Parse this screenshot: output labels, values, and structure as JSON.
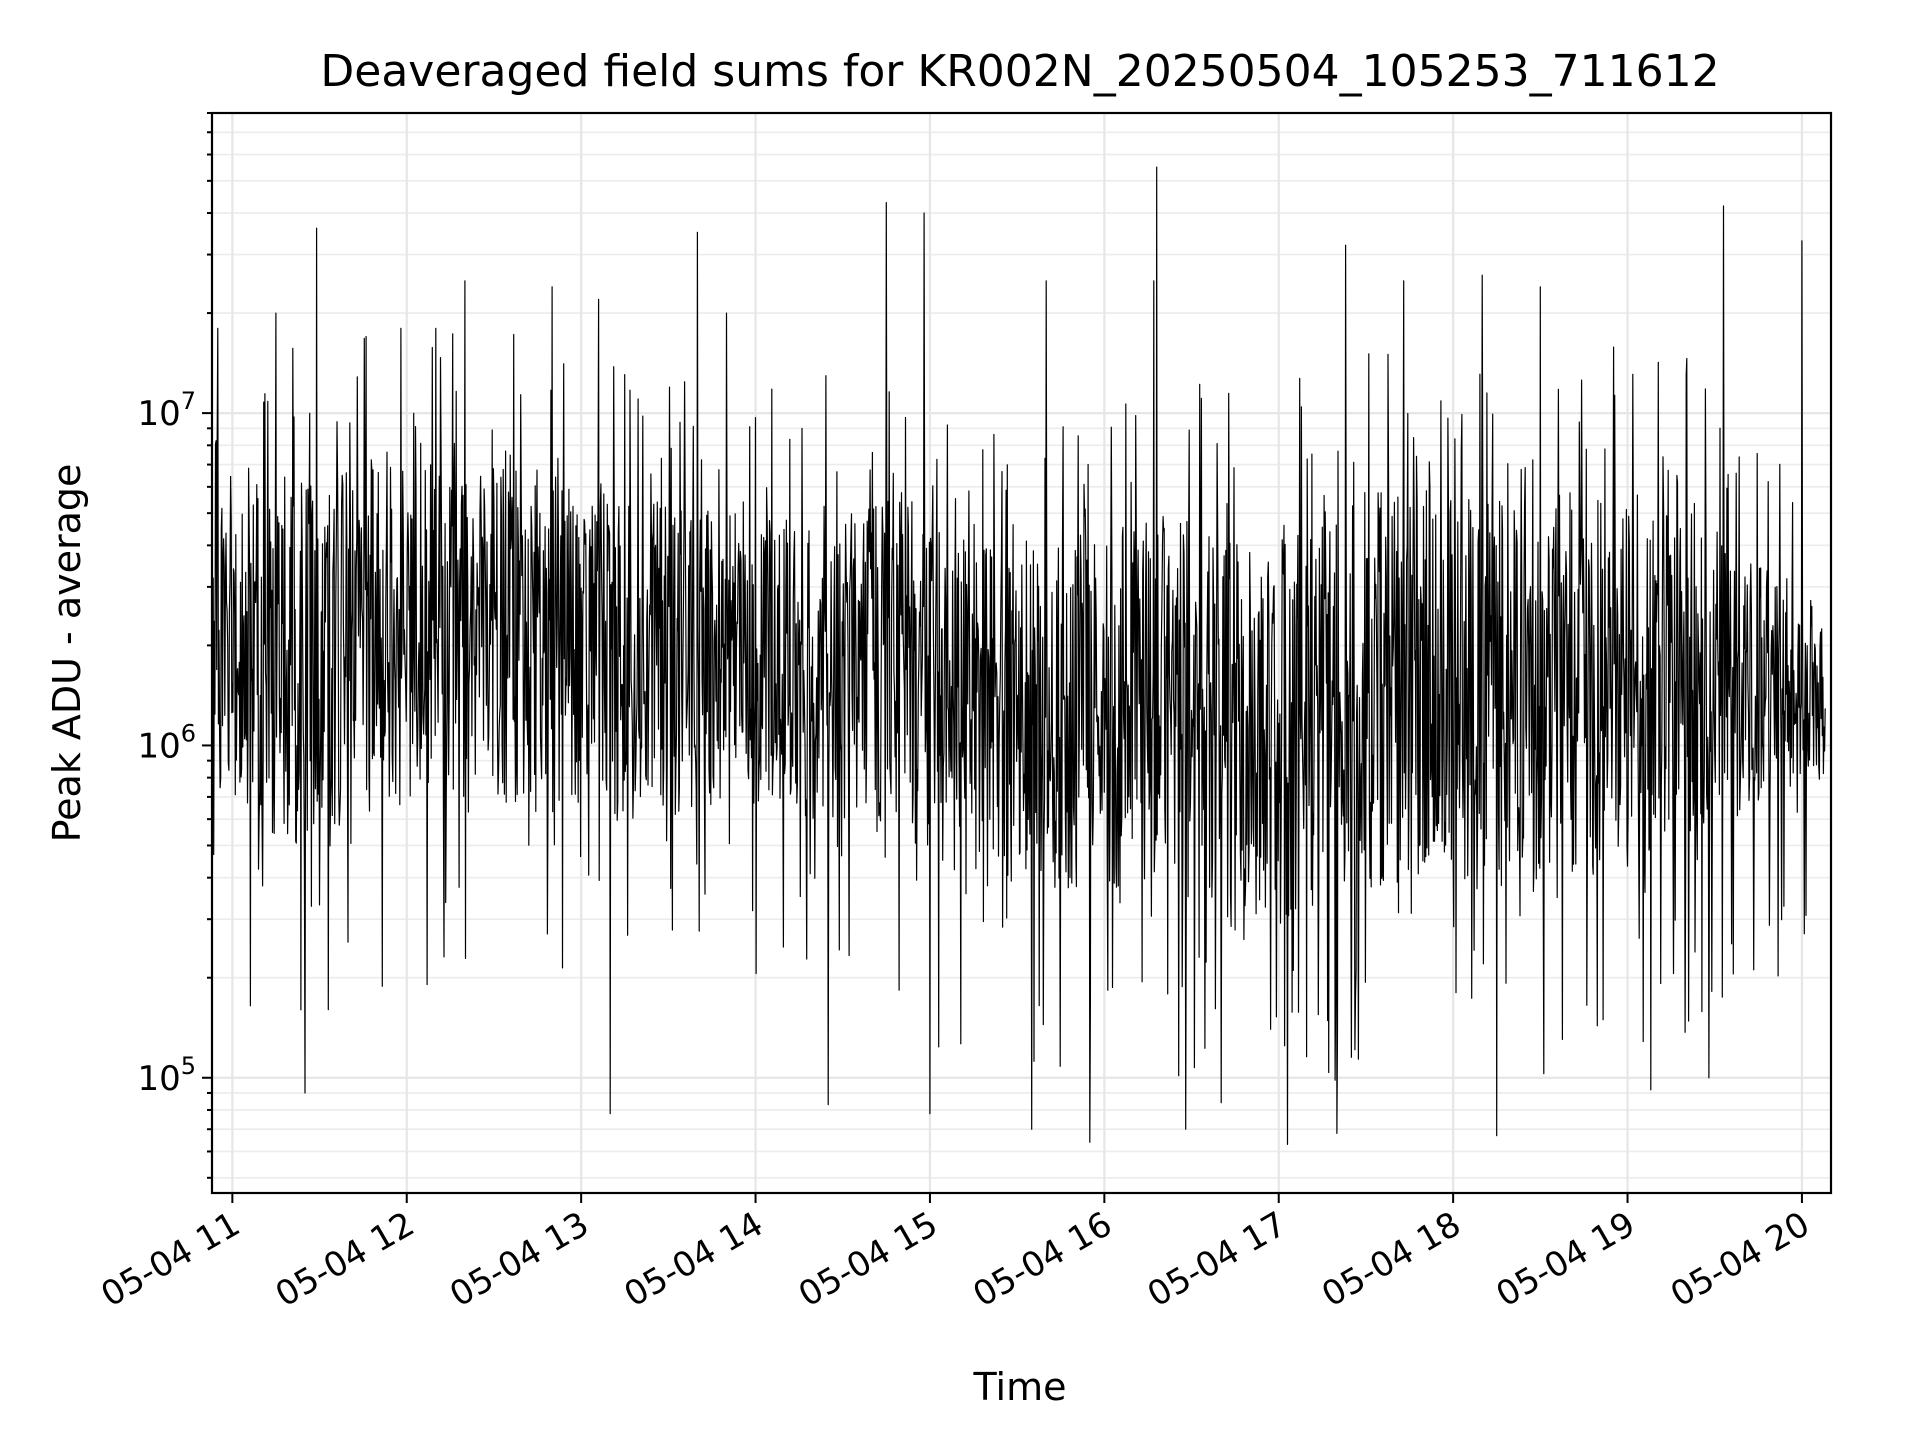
{
  "chart_data": {
    "type": "line",
    "title": "Deaveraged field sums for KR002N_20250504_105253_711612",
    "xlabel": "Time",
    "ylabel": "Peak ADU - average",
    "yscale": "log",
    "grid": true,
    "series_color": "#000000",
    "x_start": "2025-05-04T10:53",
    "x_end": "2025-05-04T20:08",
    "xlim": [
      "2025-05-04T10:53",
      "2025-05-04T20:10"
    ],
    "ylim": [
      45000,
      80000000
    ],
    "x_ticks": [
      {
        "time": "2025-05-04T11:00",
        "label": "05-04 11"
      },
      {
        "time": "2025-05-04T12:00",
        "label": "05-04 12"
      },
      {
        "time": "2025-05-04T13:00",
        "label": "05-04 13"
      },
      {
        "time": "2025-05-04T14:00",
        "label": "05-04 14"
      },
      {
        "time": "2025-05-04T15:00",
        "label": "05-04 15"
      },
      {
        "time": "2025-05-04T16:00",
        "label": "05-04 16"
      },
      {
        "time": "2025-05-04T17:00",
        "label": "05-04 17"
      },
      {
        "time": "2025-05-04T18:00",
        "label": "05-04 18"
      },
      {
        "time": "2025-05-04T19:00",
        "label": "05-04 19"
      },
      {
        "time": "2025-05-04T20:00",
        "label": "05-04 20"
      }
    ],
    "y_ticks": [
      {
        "value": 100000,
        "base": "10",
        "exp": "5"
      },
      {
        "value": 1000000,
        "base": "10",
        "exp": "6"
      },
      {
        "value": 10000000,
        "base": "10",
        "exp": "7"
      }
    ],
    "envelope": {
      "description_times": [
        "10:53",
        "11:20",
        "11:50",
        "12:20",
        "12:50",
        "13:20",
        "13:50",
        "14:20",
        "14:50",
        "15:20",
        "15:50",
        "16:20",
        "16:50",
        "17:20",
        "17:50",
        "18:20",
        "18:50",
        "19:20",
        "19:50",
        "20:08"
      ],
      "typical_high": [
        5000000,
        6000000,
        8000000,
        7000000,
        6500000,
        5500000,
        5000000,
        5000000,
        6000000,
        4000000,
        4500000,
        5000000,
        4500000,
        6000000,
        6000000,
        5500000,
        6000000,
        5500000,
        3500000,
        2500000
      ],
      "typical_low": [
        700000,
        500000,
        600000,
        700000,
        600000,
        600000,
        700000,
        600000,
        500000,
        400000,
        350000,
        400000,
        250000,
        350000,
        400000,
        350000,
        400000,
        500000,
        700000,
        800000
      ]
    },
    "spikes_high": [
      {
        "time": "2025-05-04T10:55",
        "value": 18000000
      },
      {
        "time": "2025-05-04T11:15",
        "value": 20000000
      },
      {
        "time": "2025-05-04T11:29",
        "value": 36000000
      },
      {
        "time": "2025-05-04T11:46",
        "value": 17000000
      },
      {
        "time": "2025-05-04T11:58",
        "value": 18000000
      },
      {
        "time": "2025-05-04T12:10",
        "value": 18000000
      },
      {
        "time": "2025-05-04T12:20",
        "value": 25000000
      },
      {
        "time": "2025-05-04T12:50",
        "value": 24000000
      },
      {
        "time": "2025-05-04T13:06",
        "value": 22000000
      },
      {
        "time": "2025-05-04T13:40",
        "value": 35000000
      },
      {
        "time": "2025-05-04T13:50",
        "value": 20000000
      },
      {
        "time": "2025-05-04T14:45",
        "value": 43000000
      },
      {
        "time": "2025-05-04T14:58",
        "value": 40000000
      },
      {
        "time": "2025-05-04T15:40",
        "value": 25000000
      },
      {
        "time": "2025-05-04T15:55",
        "value": 24000000
      },
      {
        "time": "2025-05-04T16:17",
        "value": 25000000
      },
      {
        "time": "2025-05-04T16:18",
        "value": 55000000
      },
      {
        "time": "2025-05-04T17:23",
        "value": 32000000
      },
      {
        "time": "2025-05-04T17:43",
        "value": 25000000
      },
      {
        "time": "2025-05-04T18:10",
        "value": 26000000
      },
      {
        "time": "2025-05-04T18:30",
        "value": 24000000
      },
      {
        "time": "2025-05-04T19:33",
        "value": 42000000
      },
      {
        "time": "2025-05-04T20:00",
        "value": 33000000
      }
    ],
    "spikes_low": [
      {
        "time": "2025-05-04T11:25",
        "value": 90000
      },
      {
        "time": "2025-05-04T13:10",
        "value": 78000
      },
      {
        "time": "2025-05-04T14:25",
        "value": 83000
      },
      {
        "time": "2025-05-04T15:00",
        "value": 78000
      },
      {
        "time": "2025-05-04T15:35",
        "value": 70000
      },
      {
        "time": "2025-05-04T15:55",
        "value": 64000
      },
      {
        "time": "2025-05-04T16:28",
        "value": 70000
      },
      {
        "time": "2025-05-04T17:03",
        "value": 63000
      },
      {
        "time": "2025-05-04T17:20",
        "value": 68000
      },
      {
        "time": "2025-05-04T18:15",
        "value": 67000
      },
      {
        "time": "2025-05-04T19:08",
        "value": 92000
      },
      {
        "time": "2025-05-04T19:28",
        "value": 100000
      }
    ],
    "sample_interval_seconds": 12,
    "random_seed": 711612
  }
}
